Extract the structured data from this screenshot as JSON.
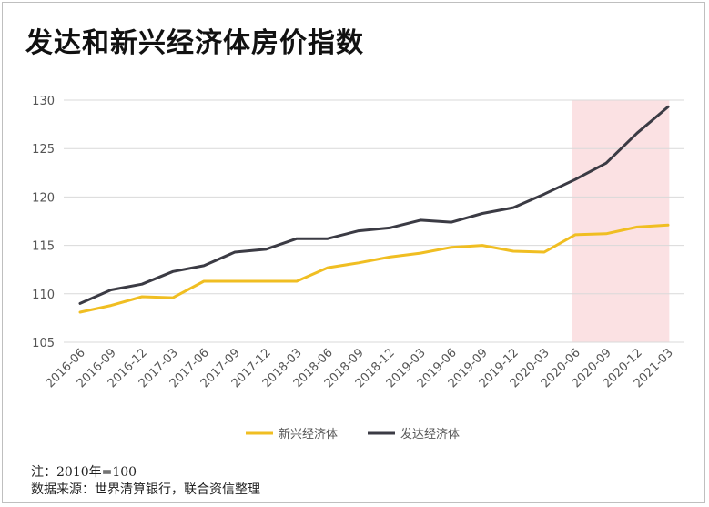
{
  "chart_data": {
    "type": "line",
    "title": "发达和新兴经济体房价指数",
    "categories": [
      "2016-06",
      "2016-09",
      "2016-12",
      "2017-03",
      "2017-06",
      "2017-09",
      "2017-12",
      "2018-03",
      "2018-06",
      "2018-09",
      "2018-12",
      "2019-03",
      "2019-06",
      "2019-09",
      "2019-12",
      "2020-03",
      "2020-06",
      "2020-09",
      "2020-12",
      "2021-03"
    ],
    "series": [
      {
        "name": "新兴经济体",
        "color": "#F0BE22",
        "values": [
          108.1,
          108.8,
          109.7,
          109.6,
          111.3,
          111.3,
          111.3,
          111.3,
          112.7,
          113.2,
          113.8,
          114.2,
          114.8,
          115.0,
          114.4,
          114.3,
          116.1,
          116.2,
          116.9,
          117.1
        ]
      },
      {
        "name": "发达经济体",
        "color": "#3B3B44",
        "values": [
          109.0,
          110.4,
          111.0,
          112.3,
          112.9,
          114.3,
          114.6,
          115.7,
          115.7,
          116.5,
          116.8,
          117.6,
          117.4,
          118.3,
          118.9,
          120.3,
          121.8,
          123.5,
          126.6,
          129.3
        ]
      }
    ],
    "ylim": [
      105,
      130
    ],
    "yticks": [
      105,
      110,
      115,
      120,
      125,
      130
    ],
    "grid": true,
    "legend_position": "bottom",
    "highlight": {
      "from": "2020-06",
      "to": "2021-03",
      "color": "#FBE1E3"
    }
  },
  "notes": {
    "line1": "注：2010年=100",
    "line2": "数据来源：世界清算银行，联合资信整理"
  }
}
